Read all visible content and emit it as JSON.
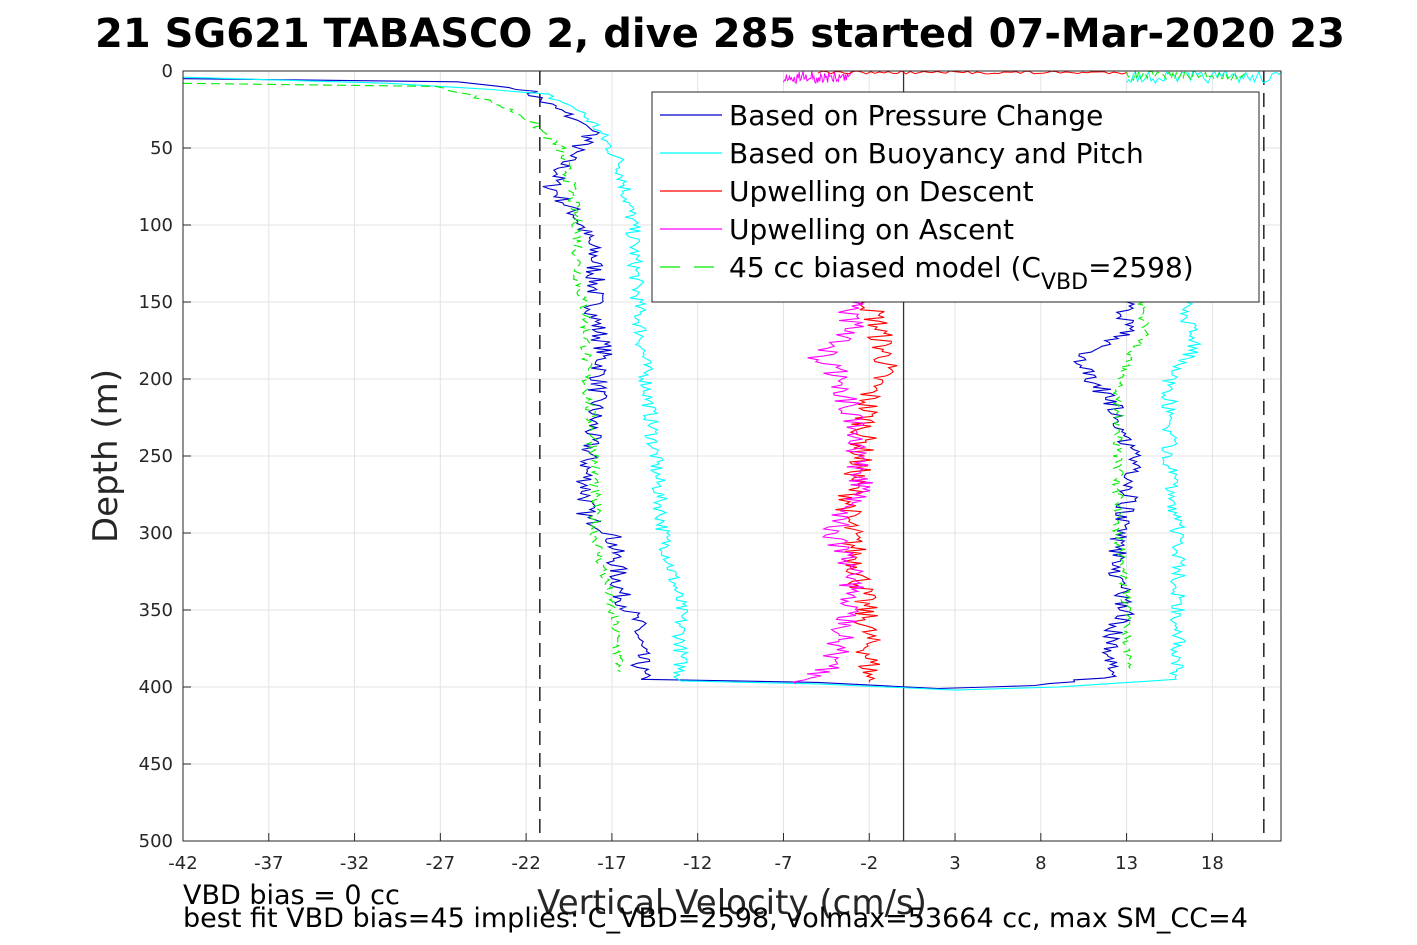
{
  "chart_data": {
    "type": "line",
    "title": "21 SG621 TABASCO 2, dive 285 started 07-Mar-2020 23",
    "xlabel": "Vertical Velocity (cm/s)",
    "ylabel": "Depth (m)",
    "xlim": [
      -42,
      22
    ],
    "ylim": [
      0,
      500
    ],
    "y_reversed": true,
    "grid": true,
    "xticks": [
      "-42",
      "-37",
      "-32",
      "-27",
      "-22",
      "-17",
      "-12",
      "-7",
      "-2",
      "3",
      "8",
      "13",
      "18"
    ],
    "yticks": [
      "0",
      "50",
      "100",
      "150",
      "200",
      "250",
      "300",
      "350",
      "400",
      "450",
      "500"
    ],
    "legend_position": "top-right",
    "colors": {
      "pressure": "#0000cc",
      "buoyancy": "#00ffff",
      "up_descent": "#ff0000",
      "up_ascent": "#ff00ff",
      "model": "#00ee00",
      "refline": "#000000"
    },
    "legend": [
      {
        "key": "pressure",
        "text": "Based on Pressure Change",
        "dashed": false
      },
      {
        "key": "buoyancy",
        "text": "Based on Buoyancy and Pitch",
        "dashed": false
      },
      {
        "key": "up_descent",
        "text": "Upwelling on Descent",
        "dashed": false
      },
      {
        "key": "up_ascent",
        "text": "Upwelling on Ascent",
        "dashed": false
      },
      {
        "key": "model",
        "text": "45 cc biased model (C",
        "sub": "VBD",
        "tail": "=2598)",
        "dashed": true
      }
    ],
    "vertical_lines": [
      {
        "x": -21.2,
        "style": "dashed"
      },
      {
        "x": 0,
        "style": "solid"
      },
      {
        "x": 21.0,
        "style": "dashed"
      }
    ],
    "series": [
      {
        "key": "pressure",
        "name": "Based on Pressure Change",
        "noise": 0.6,
        "points": [
          [
            -42,
            5
          ],
          [
            -26,
            7
          ],
          [
            -22,
            12
          ],
          [
            -21,
            20
          ],
          [
            -19,
            32
          ],
          [
            -18.5,
            35
          ],
          [
            -18,
            40
          ],
          [
            -19.5,
            55
          ],
          [
            -20.5,
            75
          ],
          [
            -19,
            95
          ],
          [
            -18,
            120
          ],
          [
            -18,
            160
          ],
          [
            -17.5,
            180
          ],
          [
            -18,
            220
          ],
          [
            -18.5,
            260
          ],
          [
            -18.5,
            290
          ],
          [
            -17,
            300
          ],
          [
            -16.5,
            340
          ],
          [
            -15.5,
            360
          ],
          [
            -15.3,
            395
          ],
          [
            -5,
            397
          ],
          [
            2,
            401
          ],
          [
            8,
            399
          ],
          [
            12,
            393
          ],
          [
            12,
            370
          ],
          [
            13,
            350
          ],
          [
            12.5,
            330
          ],
          [
            12.5,
            300
          ],
          [
            13.5,
            260
          ],
          [
            12.5,
            220
          ],
          [
            11,
            200
          ],
          [
            10,
            185
          ],
          [
            13,
            170
          ],
          [
            13,
            150
          ]
        ]
      },
      {
        "key": "buoyancy",
        "name": "Based on Buoyancy and Pitch",
        "noise": 0.45,
        "points": [
          [
            -42,
            4
          ],
          [
            -30,
            8
          ],
          [
            -24,
            12
          ],
          [
            -21,
            15
          ],
          [
            -19.5,
            22
          ],
          [
            -19,
            25
          ],
          [
            -18,
            35
          ],
          [
            -16.5,
            60
          ],
          [
            -15.8,
            100
          ],
          [
            -15.5,
            150
          ],
          [
            -15,
            200
          ],
          [
            -14.5,
            250
          ],
          [
            -14,
            300
          ],
          [
            -13,
            350
          ],
          [
            -13,
            396
          ],
          [
            -5,
            398
          ],
          [
            3,
            402
          ],
          [
            9,
            400
          ],
          [
            16,
            395
          ],
          [
            16,
            350
          ],
          [
            16,
            300
          ],
          [
            15.5,
            250
          ],
          [
            15.5,
            200
          ],
          [
            17,
            180
          ],
          [
            16.5,
            160
          ],
          [
            16.5,
            150
          ]
        ]
      },
      {
        "key": "up_descent",
        "name": "Upwelling on Descent",
        "noise": 0.8,
        "points": [
          [
            -2,
            150
          ],
          [
            -1.5,
            165
          ],
          [
            -1,
            190
          ],
          [
            -2,
            210
          ],
          [
            -2.5,
            250
          ],
          [
            -3.3,
            290
          ],
          [
            -2.5,
            330
          ],
          [
            -2,
            380
          ],
          [
            -2,
            397
          ]
        ]
      },
      {
        "key": "up_ascent",
        "name": "Upwelling on Ascent",
        "noise": 0.8,
        "points": [
          [
            -6,
            398
          ],
          [
            -4,
            385
          ],
          [
            -3.5,
            360
          ],
          [
            -3,
            330
          ],
          [
            -4,
            300
          ],
          [
            -2.5,
            270
          ],
          [
            -3,
            230
          ],
          [
            -3.5,
            200
          ],
          [
            -5,
            185
          ],
          [
            -3,
            170
          ],
          [
            -3,
            150
          ]
        ]
      },
      {
        "key": "model",
        "name": "45 cc biased model (C_VBD=2598)",
        "dashed": true,
        "noise": 0.35,
        "points": [
          [
            -42,
            8
          ],
          [
            -27,
            10
          ],
          [
            -24,
            20
          ],
          [
            -22,
            30
          ],
          [
            -20,
            50
          ],
          [
            -19.5,
            70
          ],
          [
            -19,
            100
          ],
          [
            -19,
            130
          ],
          [
            -18.5,
            160
          ],
          [
            -18.5,
            200
          ],
          [
            -18,
            250
          ],
          [
            -18,
            300
          ],
          [
            -17,
            350
          ],
          [
            -16.5,
            390
          ]
        ]
      },
      {
        "key": "model",
        "name": "45 cc biased model (C_VBD=2598)",
        "dashed": true,
        "noise": 0.3,
        "points": [
          [
            13,
            388
          ],
          [
            13,
            350
          ],
          [
            12.5,
            300
          ],
          [
            12.5,
            250
          ],
          [
            12.5,
            200
          ],
          [
            13.2,
            185
          ],
          [
            14,
            175
          ],
          [
            14,
            150
          ]
        ]
      }
    ],
    "surface_noise": [
      {
        "key": "up_ascent",
        "x_range": [
          -3,
          -7
        ],
        "y_max": 8
      },
      {
        "key": "up_descent",
        "x_range": [
          -5,
          13
        ],
        "y_max": 2
      },
      {
        "key": "buoyancy",
        "x_range": [
          13,
          22
        ],
        "y_max": 8
      },
      {
        "key": "model",
        "x_range": [
          13,
          20
        ],
        "y_max": 6
      }
    ]
  },
  "footer": {
    "line1": "VBD bias = 0 cc",
    "line2": "best fit VBD bias=45 implies: C_VBD=2598, volmax=53664 cc, max SM_CC=4"
  }
}
